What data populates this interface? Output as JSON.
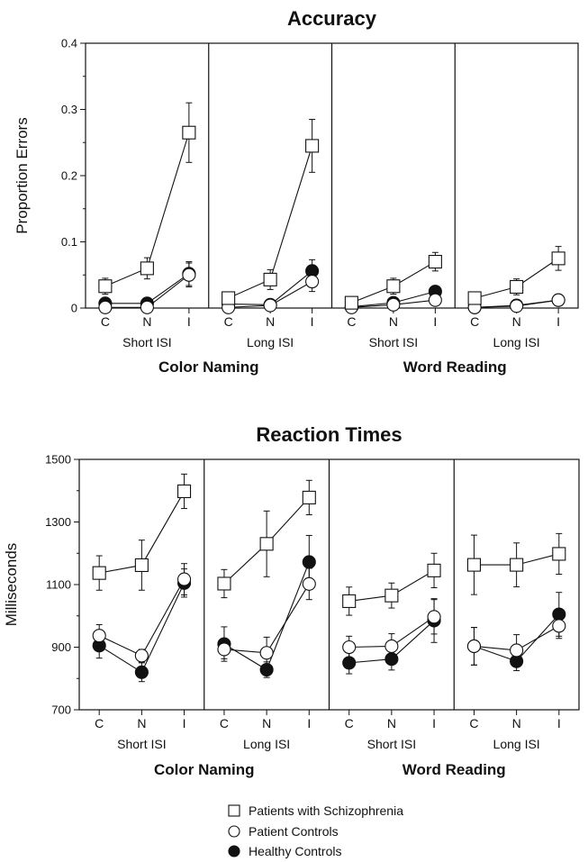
{
  "chart_data": [
    {
      "type": "line",
      "title": "Accuracy",
      "ylabel": "Proportion Errors",
      "ylim": [
        0,
        0.4
      ],
      "yticks": [
        "0",
        "0.1",
        "0.2",
        "0.3",
        "0.4"
      ],
      "categories": [
        "C",
        "N",
        "I"
      ],
      "groups": [
        "Color Naming",
        "Word Reading"
      ],
      "panels": [
        {
          "group": "Color Naming",
          "condition": "Short ISI",
          "series": [
            {
              "name": "Patients with Schizophrenia",
              "values": [
                0.033,
                0.06,
                0.265
              ],
              "errors": [
                0.012,
                0.016,
                0.045
              ]
            },
            {
              "name": "Patient Controls",
              "values": [
                0.001,
                0.001,
                0.05
              ],
              "errors": [
                0.005,
                0.005,
                0.018
              ]
            },
            {
              "name": "Healthy Controls",
              "values": [
                0.007,
                0.007,
                0.052
              ],
              "errors": [
                0.005,
                0.005,
                0.018
              ]
            }
          ]
        },
        {
          "group": "Color Naming",
          "condition": "Long ISI",
          "series": [
            {
              "name": "Patients with Schizophrenia",
              "values": [
                0.015,
                0.043,
                0.245
              ],
              "errors": [
                0.008,
                0.015,
                0.04
              ]
            },
            {
              "name": "Patient Controls",
              "values": [
                0.001,
                0.004,
                0.04
              ],
              "errors": [
                0.004,
                0.004,
                0.015
              ]
            },
            {
              "name": "Healthy Controls",
              "values": [
                0.006,
                0.005,
                0.056
              ],
              "errors": [
                0.004,
                0.004,
                0.017
              ]
            }
          ]
        },
        {
          "group": "Word Reading",
          "condition": "Short ISI",
          "series": [
            {
              "name": "Patients with Schizophrenia",
              "values": [
                0.008,
                0.033,
                0.07
              ],
              "errors": [
                0.006,
                0.012,
                0.014
              ]
            },
            {
              "name": "Patient Controls",
              "values": [
                0.001,
                0.005,
                0.012
              ],
              "errors": [
                0.003,
                0.004,
                0.006
              ]
            },
            {
              "name": "Healthy Controls",
              "values": [
                0.002,
                0.008,
                0.025
              ],
              "errors": [
                0.003,
                0.004,
                0.008
              ]
            }
          ]
        },
        {
          "group": "Word Reading",
          "condition": "Long ISI",
          "series": [
            {
              "name": "Patients with Schizophrenia",
              "values": [
                0.015,
                0.032,
                0.075
              ],
              "errors": [
                0.006,
                0.012,
                0.018
              ]
            },
            {
              "name": "Patient Controls",
              "values": [
                0.001,
                0.003,
                0.012
              ],
              "errors": [
                0.003,
                0.003,
                0.004
              ]
            },
            {
              "name": "Healthy Controls",
              "values": [
                0.001,
                0.004,
                0.012
              ],
              "errors": [
                0.003,
                0.003,
                0.004
              ]
            }
          ]
        }
      ]
    },
    {
      "type": "line",
      "title": "Reaction Times",
      "ylabel": "Milliseconds",
      "ylim": [
        700,
        1500
      ],
      "yticks": [
        "700",
        "900",
        "1100",
        "1300",
        "1500"
      ],
      "categories": [
        "C",
        "N",
        "I"
      ],
      "groups": [
        "Color Naming",
        "Word Reading"
      ],
      "panels": [
        {
          "group": "Color Naming",
          "condition": "Short ISI",
          "series": [
            {
              "name": "Patients with Schizophrenia",
              "values": [
                1137,
                1162,
                1398
              ],
              "errors": [
                55,
                80,
                55
              ]
            },
            {
              "name": "Patient Controls",
              "values": [
                937,
                873,
                1117
              ],
              "errors": [
                35,
                20,
                50
              ]
            },
            {
              "name": "Healthy Controls",
              "values": [
                905,
                820,
                1105
              ],
              "errors": [
                40,
                30,
                45
              ]
            }
          ]
        },
        {
          "group": "Color Naming",
          "condition": "Long ISI",
          "series": [
            {
              "name": "Patients with Schizophrenia",
              "values": [
                1103,
                1230,
                1378
              ],
              "errors": [
                45,
                105,
                55
              ]
            },
            {
              "name": "Patient Controls",
              "values": [
                893,
                882,
                1102
              ],
              "errors": [
                30,
                50,
                50
              ]
            },
            {
              "name": "Healthy Controls",
              "values": [
                910,
                828,
                1172
              ],
              "errors": [
                55,
                25,
                85
              ]
            }
          ]
        },
        {
          "group": "Word Reading",
          "condition": "Short ISI",
          "series": [
            {
              "name": "Patients with Schizophrenia",
              "values": [
                1047,
                1065,
                1145
              ],
              "errors": [
                45,
                40,
                55
              ]
            },
            {
              "name": "Patient Controls",
              "values": [
                900,
                903,
                997
              ],
              "errors": [
                35,
                40,
                55
              ]
            },
            {
              "name": "Healthy Controls",
              "values": [
                850,
                862,
                985
              ],
              "errors": [
                35,
                35,
                70
              ]
            }
          ]
        },
        {
          "group": "Word Reading",
          "condition": "Long ISI",
          "series": [
            {
              "name": "Patients with Schizophrenia",
              "values": [
                1163,
                1163,
                1198
              ],
              "errors": [
                95,
                70,
                65
              ]
            },
            {
              "name": "Patient Controls",
              "values": [
                903,
                890,
                968
              ],
              "errors": [
                60,
                50,
                40
              ]
            },
            {
              "name": "Healthy Controls",
              "values": [
                903,
                855,
                1005
              ],
              "errors": [
                60,
                30,
                70
              ]
            }
          ]
        }
      ]
    }
  ],
  "legend": {
    "position": "bottom",
    "items": [
      {
        "label": "Patients with Schizophrenia",
        "marker": "open-square"
      },
      {
        "label": "Patient Controls",
        "marker": "open-circle"
      },
      {
        "label": "Healthy Controls",
        "marker": "filled-circle"
      }
    ]
  }
}
